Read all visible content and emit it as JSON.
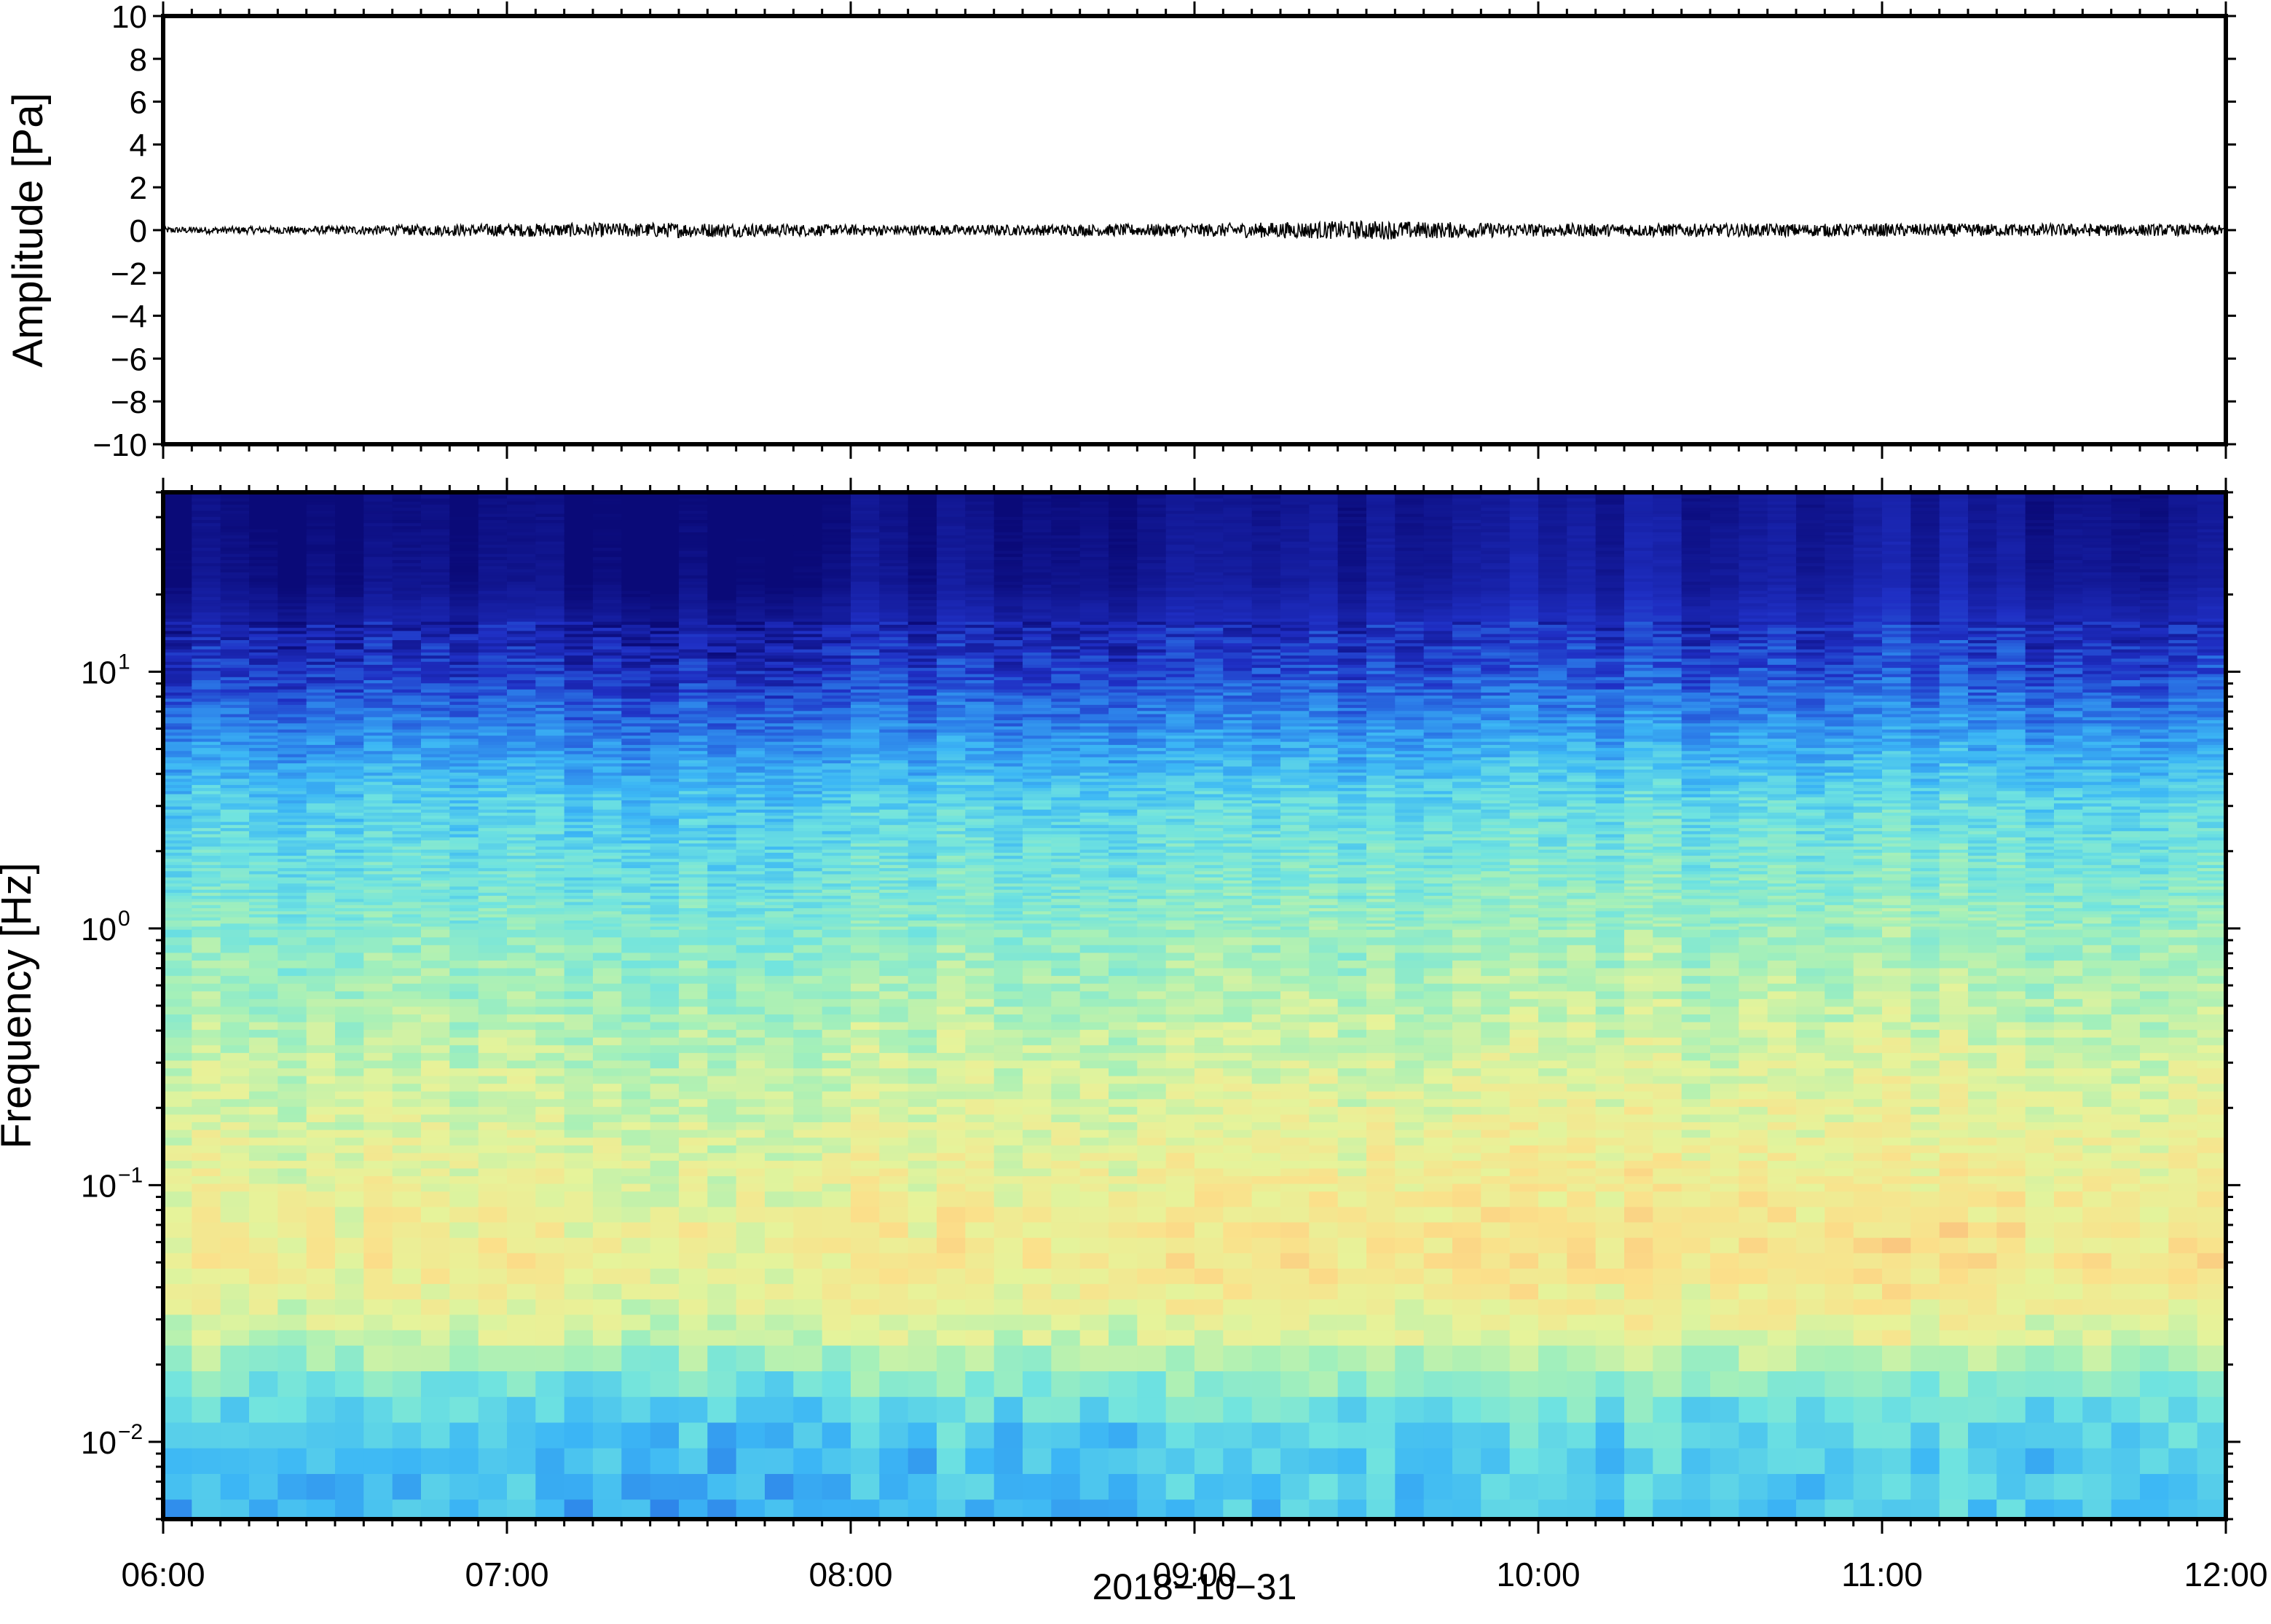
{
  "chart_data": [
    {
      "type": "line",
      "panel": "waveform",
      "ylabel": "Amplitude [Pa]",
      "xlabel": "",
      "ylim": [
        -10,
        10
      ],
      "yticks": [
        10,
        8,
        6,
        4,
        2,
        0,
        -2,
        -4,
        -6,
        -8,
        -10
      ],
      "ytick_labels": [
        "10",
        "8",
        "6",
        "4",
        "2",
        "0",
        "−2",
        "−4",
        "−6",
        "−8",
        "−10"
      ],
      "xlim": [
        "06:00",
        "12:00"
      ],
      "series": [
        {
          "values_description_free": true,
          "x": [
            "06:00",
            "06:30",
            "07:00",
            "07:30",
            "08:00",
            "08:30",
            "09:00",
            "09:30",
            "10:00",
            "10:30",
            "11:00",
            "11:30",
            "12:00"
          ],
          "y_envelope": [
            0.15,
            0.2,
            0.3,
            0.35,
            0.25,
            0.25,
            0.3,
            0.45,
            0.3,
            0.3,
            0.3,
            0.3,
            0.25
          ],
          "color": "#000000"
        }
      ],
      "grid": false
    },
    {
      "type": "heatmap",
      "panel": "spectrogram",
      "ylabel": "Frequency [Hz]",
      "xlabel": "2018−10−31",
      "yscale": "log",
      "ylim": [
        0.005,
        50
      ],
      "yticks": [
        0.01,
        0.1,
        1,
        10
      ],
      "ytick_labels": [
        {
          "base": "10",
          "exp": "−2"
        },
        {
          "base": "10",
          "exp": "−1"
        },
        {
          "base": "10",
          "exp": "0"
        },
        {
          "base": "10",
          "exp": "1"
        }
      ],
      "xlim": [
        "06:00",
        "12:00"
      ],
      "xtick_labels": [
        "06:00",
        "07:00",
        "08:00",
        "09:00",
        "10:00",
        "11:00",
        "12:00"
      ],
      "x_bins": 72,
      "colormap": [
        "#0a0a78",
        "#1f2fc4",
        "#2b7be8",
        "#3cb7f5",
        "#6fe3e0",
        "#a6f0b8",
        "#e6f39a",
        "#fbe08a",
        "#f9b276",
        "#f28a5c"
      ],
      "frequency_profile_log10": [
        {
          "log10_f": 1.7,
          "level": 0.0
        },
        {
          "log10_f": 1.35,
          "level": 0.02
        },
        {
          "log10_f": 1.0,
          "level": 0.12
        },
        {
          "log10_f": 0.75,
          "level": 0.25
        },
        {
          "log10_f": 0.5,
          "level": 0.38
        },
        {
          "log10_f": 0.0,
          "level": 0.5
        },
        {
          "log10_f": -0.5,
          "level": 0.6
        },
        {
          "log10_f": -1.0,
          "level": 0.68
        },
        {
          "log10_f": -1.3,
          "level": 0.72
        },
        {
          "log10_f": -1.6,
          "level": 0.62
        },
        {
          "log10_f": -1.8,
          "level": 0.45
        },
        {
          "log10_f": -2.0,
          "level": 0.36
        },
        {
          "log10_f": -2.3,
          "level": 0.33
        }
      ],
      "time_profile": [
        0.0,
        0.0,
        0.02,
        0.0,
        -0.02,
        0.0,
        0.01,
        0.02,
        0.0,
        0.03,
        0.02,
        0.04,
        0.04,
        0.05,
        0.05,
        0.04,
        0.03,
        0.02
      ]
    }
  ],
  "figure": {
    "date_label": "2018−10−31"
  }
}
